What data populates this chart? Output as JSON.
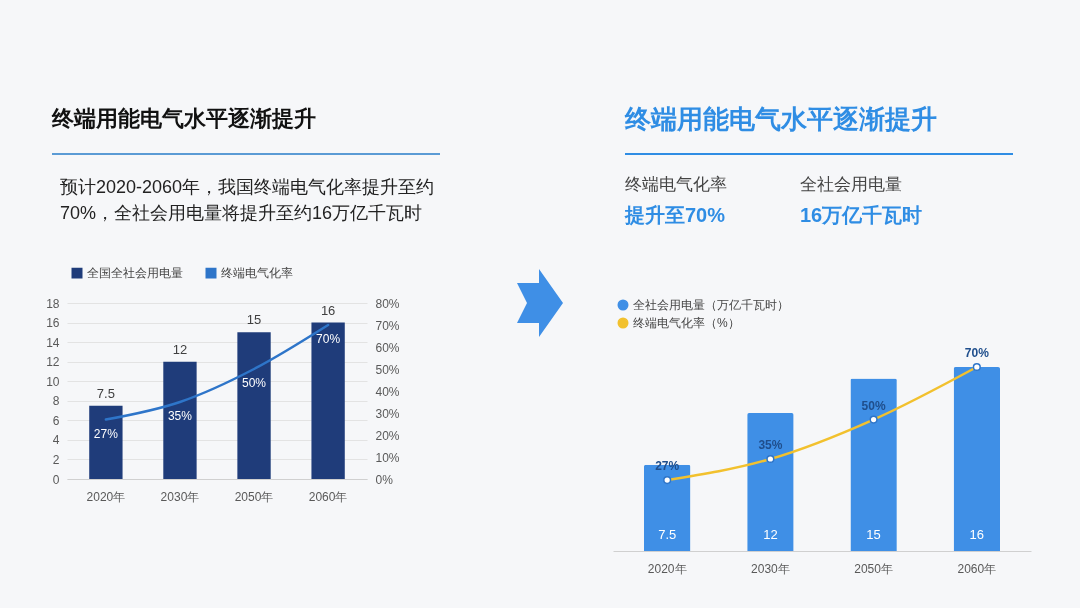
{
  "chart_data": [
    {
      "type": "bar",
      "title": "终端用能电气水平逐渐提升",
      "subtitle": "预计2020-2060年，我国终端电气化率提升至约70%，全社会用电量将提升至约16万亿千瓦时",
      "categories": [
        "2020年",
        "2030年",
        "2050年",
        "2060年"
      ],
      "series": [
        {
          "name": "全国全社会用电量",
          "color": "#1f3c7a",
          "values": [
            7.5,
            12,
            15,
            16
          ],
          "value_labels": [
            "7.5",
            "12",
            "15",
            "16"
          ]
        },
        {
          "name": "终端电气化率",
          "type": "line",
          "axis": "y2",
          "color": "#2e75c9",
          "values": [
            27,
            35,
            50,
            70
          ],
          "value_labels": [
            "27%",
            "35%",
            "50%",
            "70%"
          ]
        }
      ],
      "ylim": [
        0,
        18
      ],
      "yticks": [
        0,
        2,
        4,
        6,
        8,
        10,
        12,
        14,
        16,
        18
      ],
      "y2lim": [
        0,
        80
      ],
      "y2ticks": [
        {
          "value": 0,
          "label": "0%"
        },
        {
          "value": 10,
          "label": "10%"
        },
        {
          "value": 20,
          "label": "20%"
        },
        {
          "value": 30,
          "label": "30%"
        },
        {
          "value": 40,
          "label": "40%"
        },
        {
          "value": 50,
          "label": "50%"
        },
        {
          "value": 60,
          "label": "60%"
        },
        {
          "value": 70,
          "label": "70%"
        },
        {
          "value": 80,
          "label": "80%"
        }
      ],
      "grid": "y",
      "legend": "top"
    },
    {
      "type": "bar",
      "title": "终端用能电气水平逐渐提升",
      "annotations": [
        "终端电气化率",
        "全社会用电量",
        "提升至70%",
        "16万亿千瓦时"
      ],
      "categories": [
        "2020年",
        "2030年",
        "2050年",
        "2060年"
      ],
      "series": [
        {
          "name": "全社会用电量（万亿千瓦时）",
          "color": "#3f8fe6",
          "values": [
            7.5,
            12,
            15,
            16
          ],
          "value_labels": [
            "7.5",
            "12",
            "15",
            "16"
          ]
        },
        {
          "name": "终端电气化率（%）",
          "type": "line",
          "axis": "y2",
          "color": "#f2c12e",
          "values": [
            27,
            35,
            50,
            70
          ],
          "value_labels": [
            "27%",
            "35%",
            "50%",
            "70%"
          ]
        }
      ],
      "tick_labels": "x",
      "legend": "top left",
      "marker": "circle"
    }
  ]
}
